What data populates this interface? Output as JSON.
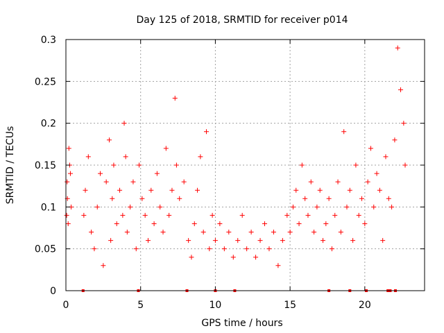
{
  "chart_data": {
    "type": "scatter",
    "title": "Day 125 of 2018, SRMTID for receiver p014",
    "xlabel": "GPS time / hours",
    "ylabel": "SRMTID / TECUs",
    "xlim": [
      0,
      24
    ],
    "ylim": [
      0,
      0.3
    ],
    "x_ticks": [
      0,
      5,
      10,
      15,
      20
    ],
    "x_tick_labels": [
      "0",
      "5",
      "10",
      "15",
      "20"
    ],
    "y_ticks": [
      0,
      0.05,
      0.1,
      0.15,
      0.2,
      0.25,
      0.3
    ],
    "y_tick_labels": [
      "0",
      "0.05",
      "0.1",
      "0.15",
      "0.2",
      "0.25",
      "0.3"
    ],
    "grid": true,
    "marker": "+",
    "colors": {
      "points": "#ff0000",
      "grid": "#a0a0a0",
      "axes": "#000000"
    },
    "series": [
      {
        "name": "SRMTID",
        "x": [
          0.05,
          0.08,
          0.1,
          0.15,
          0.2,
          0.25,
          0.3,
          0.35,
          1.2,
          1.3,
          1.5,
          1.7,
          1.9,
          2.1,
          2.3,
          2.5,
          2.7,
          2.9,
          3.0,
          3.1,
          3.2,
          3.4,
          3.6,
          3.8,
          3.9,
          4.0,
          4.1,
          4.3,
          4.5,
          4.7,
          4.9,
          5.1,
          5.3,
          5.5,
          5.7,
          5.9,
          6.1,
          6.3,
          6.5,
          6.7,
          6.9,
          7.1,
          7.3,
          7.4,
          7.6,
          7.9,
          8.2,
          8.4,
          8.6,
          8.8,
          9.0,
          9.2,
          9.4,
          9.6,
          9.8,
          10.0,
          10.3,
          10.6,
          10.9,
          11.2,
          11.5,
          11.8,
          12.1,
          12.4,
          12.7,
          13.0,
          13.3,
          13.6,
          13.9,
          14.2,
          14.5,
          14.8,
          15.0,
          15.2,
          15.4,
          15.6,
          15.8,
          16.0,
          16.2,
          16.4,
          16.6,
          16.8,
          17.0,
          17.2,
          17.4,
          17.6,
          17.8,
          18.0,
          18.2,
          18.4,
          18.6,
          18.8,
          19.0,
          19.2,
          19.4,
          19.6,
          19.8,
          20.0,
          20.2,
          20.4,
          20.6,
          20.8,
          21.0,
          21.2,
          21.4,
          21.6,
          21.8,
          22.0,
          22.2,
          22.4,
          22.6,
          22.7
        ],
        "y": [
          0.09,
          0.13,
          0.11,
          0.08,
          0.17,
          0.15,
          0.14,
          0.1,
          0.09,
          0.12,
          0.16,
          0.07,
          0.05,
          0.1,
          0.14,
          0.03,
          0.13,
          0.18,
          0.06,
          0.11,
          0.15,
          0.08,
          0.12,
          0.09,
          0.2,
          0.16,
          0.07,
          0.1,
          0.13,
          0.05,
          0.15,
          0.11,
          0.09,
          0.06,
          0.12,
          0.08,
          0.14,
          0.1,
          0.07,
          0.17,
          0.09,
          0.12,
          0.23,
          0.15,
          0.11,
          0.13,
          0.06,
          0.04,
          0.08,
          0.12,
          0.16,
          0.07,
          0.19,
          0.05,
          0.09,
          0.06,
          0.08,
          0.05,
          0.07,
          0.04,
          0.06,
          0.09,
          0.05,
          0.07,
          0.04,
          0.06,
          0.08,
          0.05,
          0.07,
          0.03,
          0.06,
          0.09,
          0.07,
          0.1,
          0.12,
          0.08,
          0.15,
          0.11,
          0.09,
          0.13,
          0.07,
          0.1,
          0.12,
          0.06,
          0.08,
          0.11,
          0.05,
          0.09,
          0.13,
          0.07,
          0.19,
          0.1,
          0.12,
          0.06,
          0.15,
          0.09,
          0.11,
          0.08,
          0.13,
          0.17,
          0.1,
          0.14,
          0.12,
          0.06,
          0.16,
          0.11,
          0.1,
          0.18,
          0.29,
          0.24,
          0.2,
          0.15
        ]
      }
    ],
    "gap_markers_x": [
      1.15,
      4.85,
      8.1,
      10.0,
      11.3,
      17.6,
      19.0,
      20.1,
      21.55,
      21.7,
      22.05
    ]
  }
}
